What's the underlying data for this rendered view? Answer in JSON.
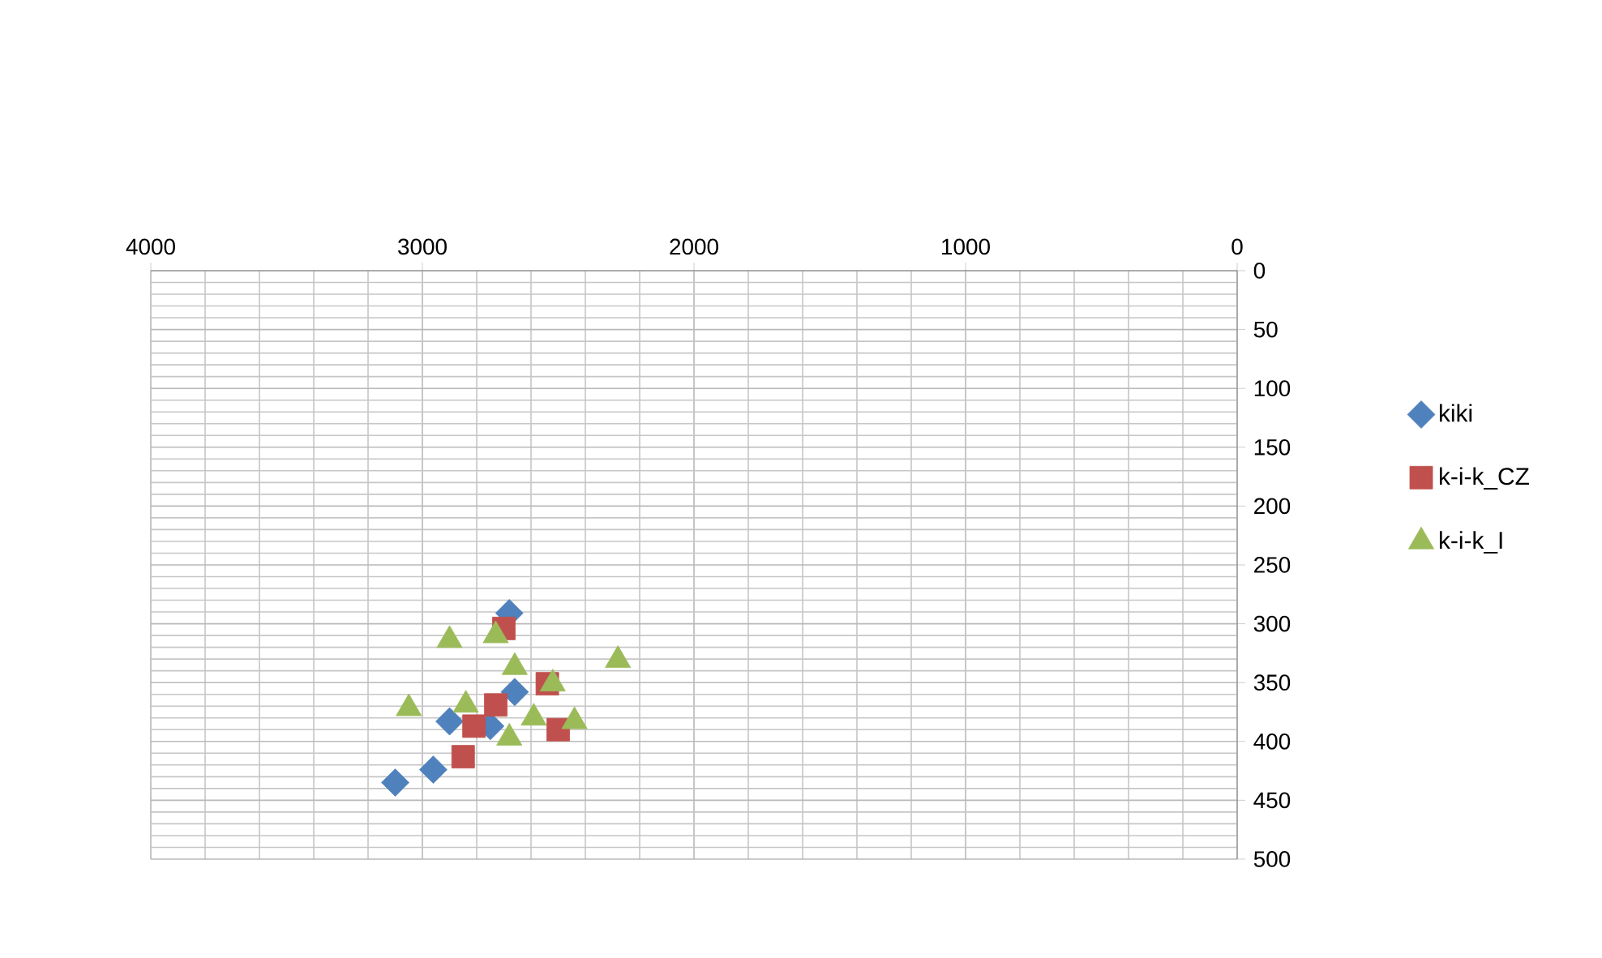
{
  "chart_data": {
    "type": "scatter",
    "xlim": [
      4000,
      0
    ],
    "ylim": [
      500,
      0
    ],
    "xticks": [
      0,
      1000,
      2000,
      3000,
      4000
    ],
    "yticks": [
      0,
      50,
      100,
      150,
      200,
      250,
      300,
      350,
      400,
      450,
      500
    ],
    "grid": true,
    "legend": "right",
    "series": [
      {
        "name": "kiki",
        "color": "#4f81bd",
        "marker": "diamond",
        "x": [
          3100,
          2960,
          2680,
          2900,
          2660,
          2750
        ],
        "values": [
          435,
          424,
          291,
          383,
          358,
          387
        ]
      },
      {
        "name": "k-i-k_CZ",
        "color": "#c0504d",
        "marker": "square",
        "x": [
          2700,
          2730,
          2810,
          2850,
          2540,
          2500
        ],
        "values": [
          304,
          369,
          387,
          413,
          351,
          390
        ]
      },
      {
        "name": "k-i-k_I",
        "color": "#9bbb59",
        "marker": "triangle",
        "x": [
          2900,
          2730,
          2660,
          2280,
          3050,
          2840,
          2520,
          2590,
          2440,
          2680
        ],
        "values": [
          314,
          310,
          337,
          331,
          372,
          369,
          351,
          380,
          383,
          397
        ]
      }
    ]
  }
}
